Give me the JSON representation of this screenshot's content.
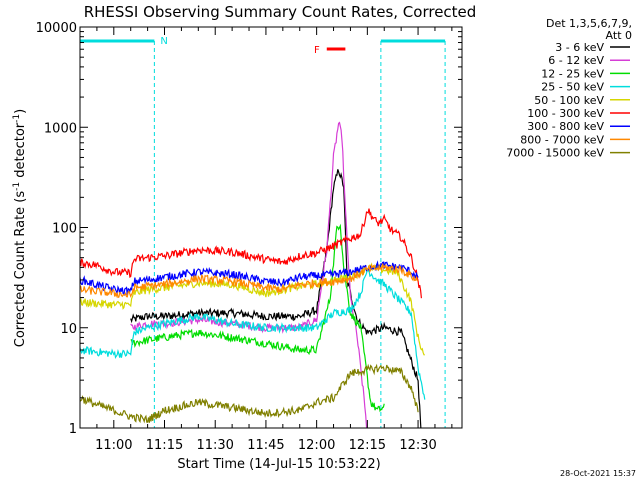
{
  "chart_data": {
    "type": "line",
    "title": "RHESSI Observing Summary Count Rates, Corrected",
    "xlabel": "Start Time (14-Jul-15 10:53:22)",
    "ylabel": "Corrected Count Rate (s",
    "ylabel_sup": "-1",
    "ylabel_tail": " detector",
    "ylabel_tail_sup": "-1",
    "ylabel_end": ")",
    "y_scale": "log",
    "ylim": [
      1,
      10000
    ],
    "xlim_minutes": [
      -10,
      103
    ],
    "x_ticks": [
      {
        "minute": 0,
        "label": "11:00"
      },
      {
        "minute": 15,
        "label": "11:15"
      },
      {
        "minute": 30,
        "label": "11:30"
      },
      {
        "minute": 45,
        "label": "11:45"
      },
      {
        "minute": 60,
        "label": "12:00"
      },
      {
        "minute": 75,
        "label": "12:15"
      },
      {
        "minute": 90,
        "label": "12:30"
      }
    ],
    "y_ticks": [
      {
        "value": 1,
        "label": "1"
      },
      {
        "value": 10,
        "label": "10"
      },
      {
        "value": 100,
        "label": "100"
      },
      {
        "value": 1000,
        "label": "1000"
      },
      {
        "value": 10000,
        "label": "10000"
      }
    ],
    "legend_header": [
      "Det 1,3,5,6,7,9,",
      "Att 0"
    ],
    "legend_position": "right",
    "annotations": {
      "night_label": "N",
      "flare_label": "F",
      "footer_date": "28-Oct-2021 15:37"
    },
    "night_intervals_minutes": [
      [
        -10,
        12
      ],
      [
        79,
        98
      ]
    ],
    "flare_interval_minutes": [
      63,
      68.5
    ],
    "series": [
      {
        "name": "3 - 6 keV",
        "color": "#000000",
        "points": [
          [
            5,
            12
          ],
          [
            10,
            13
          ],
          [
            15,
            13
          ],
          [
            25,
            14
          ],
          [
            35,
            14
          ],
          [
            45,
            13
          ],
          [
            55,
            13
          ],
          [
            60,
            15
          ],
          [
            63,
            60
          ],
          [
            65,
            250
          ],
          [
            66.5,
            380
          ],
          [
            68,
            260
          ],
          [
            69,
            30
          ],
          [
            72,
            12
          ],
          [
            75,
            9
          ],
          [
            80,
            10
          ],
          [
            85,
            9
          ],
          [
            90,
            3
          ],
          [
            91,
            0.8
          ]
        ]
      },
      {
        "name": "6 - 12 keV",
        "color": "#d63ed6",
        "points": [
          [
            5,
            10
          ],
          [
            10,
            11
          ],
          [
            15,
            11
          ],
          [
            25,
            12
          ],
          [
            35,
            11
          ],
          [
            45,
            10
          ],
          [
            55,
            10
          ],
          [
            60,
            12
          ],
          [
            63,
            60
          ],
          [
            65,
            500
          ],
          [
            66.5,
            1100
          ],
          [
            67.5,
            800
          ],
          [
            68.5,
            150
          ],
          [
            70,
            20
          ],
          [
            72,
            8
          ],
          [
            74,
            2
          ],
          [
            75,
            0.9
          ]
        ]
      },
      {
        "name": "12 - 25 keV",
        "color": "#00dd00",
        "points": [
          [
            5,
            7
          ],
          [
            10,
            7.5
          ],
          [
            15,
            8
          ],
          [
            25,
            9
          ],
          [
            35,
            8
          ],
          [
            45,
            7
          ],
          [
            55,
            6
          ],
          [
            60,
            6
          ],
          [
            64,
            20
          ],
          [
            66,
            100
          ],
          [
            67,
            110
          ],
          [
            68,
            40
          ],
          [
            70,
            14
          ],
          [
            73,
            10
          ],
          [
            76,
            1.8
          ],
          [
            78,
            1.5
          ],
          [
            80,
            1.6
          ]
        ]
      },
      {
        "name": "25 - 50 keV",
        "color": "#00dddd",
        "points": [
          [
            -10,
            6
          ],
          [
            0,
            5.5
          ],
          [
            5,
            5.5
          ],
          [
            6,
            9
          ],
          [
            10,
            10
          ],
          [
            15,
            11
          ],
          [
            25,
            13
          ],
          [
            35,
            11
          ],
          [
            45,
            10
          ],
          [
            55,
            10
          ],
          [
            60,
            10
          ],
          [
            65,
            14
          ],
          [
            70,
            15
          ],
          [
            73,
            22
          ],
          [
            75,
            38
          ],
          [
            78,
            30
          ],
          [
            80,
            27
          ],
          [
            85,
            18
          ],
          [
            88,
            14
          ],
          [
            90,
            4
          ],
          [
            92,
            2
          ]
        ]
      },
      {
        "name": "50 - 100 keV",
        "color": "#d6d600",
        "points": [
          [
            -10,
            18
          ],
          [
            0,
            17
          ],
          [
            5,
            17
          ],
          [
            6,
            22
          ],
          [
            10,
            24
          ],
          [
            15,
            25
          ],
          [
            25,
            28
          ],
          [
            35,
            27
          ],
          [
            45,
            22
          ],
          [
            55,
            26
          ],
          [
            60,
            27
          ],
          [
            65,
            30
          ],
          [
            70,
            32
          ],
          [
            75,
            40
          ],
          [
            80,
            38
          ],
          [
            84,
            35
          ],
          [
            88,
            18
          ],
          [
            90,
            8
          ],
          [
            92,
            5
          ]
        ]
      },
      {
        "name": "100 - 300 keV",
        "color": "#ff0000",
        "points": [
          [
            -10,
            45
          ],
          [
            -5,
            42
          ],
          [
            0,
            36
          ],
          [
            5,
            35
          ],
          [
            6,
            48
          ],
          [
            10,
            50
          ],
          [
            15,
            52
          ],
          [
            25,
            60
          ],
          [
            35,
            57
          ],
          [
            45,
            48
          ],
          [
            50,
            45
          ],
          [
            55,
            52
          ],
          [
            60,
            56
          ],
          [
            65,
            65
          ],
          [
            70,
            78
          ],
          [
            73,
            85
          ],
          [
            75,
            150
          ],
          [
            78,
            110
          ],
          [
            80,
            120
          ],
          [
            82,
            95
          ],
          [
            85,
            80
          ],
          [
            88,
            50
          ],
          [
            90,
            30
          ],
          [
            91,
            20
          ]
        ]
      },
      {
        "name": "300 - 800 keV",
        "color": "#0000ff",
        "points": [
          [
            -10,
            30
          ],
          [
            0,
            24
          ],
          [
            5,
            23
          ],
          [
            6,
            29
          ],
          [
            10,
            30
          ],
          [
            15,
            32
          ],
          [
            25,
            36
          ],
          [
            35,
            34
          ],
          [
            45,
            29
          ],
          [
            50,
            28
          ],
          [
            55,
            32
          ],
          [
            60,
            33
          ],
          [
            65,
            34
          ],
          [
            70,
            36
          ],
          [
            75,
            40
          ],
          [
            80,
            42
          ],
          [
            85,
            40
          ],
          [
            88,
            36
          ],
          [
            90,
            32
          ]
        ]
      },
      {
        "name": "800 - 7000 keV",
        "color": "#ff8800",
        "points": [
          [
            -10,
            24
          ],
          [
            0,
            22
          ],
          [
            5,
            21
          ],
          [
            6,
            25
          ],
          [
            10,
            26
          ],
          [
            15,
            27
          ],
          [
            25,
            31
          ],
          [
            35,
            29
          ],
          [
            45,
            25
          ],
          [
            50,
            24
          ],
          [
            55,
            27
          ],
          [
            60,
            28
          ],
          [
            65,
            29
          ],
          [
            70,
            31
          ],
          [
            75,
            38
          ],
          [
            80,
            40
          ],
          [
            85,
            38
          ],
          [
            88,
            33
          ],
          [
            90,
            29
          ]
        ]
      },
      {
        "name": "7000 - 15000 keV",
        "color": "#808000",
        "points": [
          [
            -10,
            2
          ],
          [
            -5,
            1.7
          ],
          [
            0,
            1.5
          ],
          [
            5,
            1.3
          ],
          [
            10,
            1.2
          ],
          [
            15,
            1.5
          ],
          [
            25,
            1.8
          ],
          [
            35,
            1.6
          ],
          [
            45,
            1.4
          ],
          [
            55,
            1.5
          ],
          [
            60,
            1.8
          ],
          [
            65,
            2.0
          ],
          [
            70,
            3.5
          ],
          [
            75,
            3.8
          ],
          [
            80,
            4.0
          ],
          [
            85,
            3.6
          ],
          [
            88,
            2.5
          ],
          [
            90,
            1.5
          ]
        ]
      }
    ]
  }
}
